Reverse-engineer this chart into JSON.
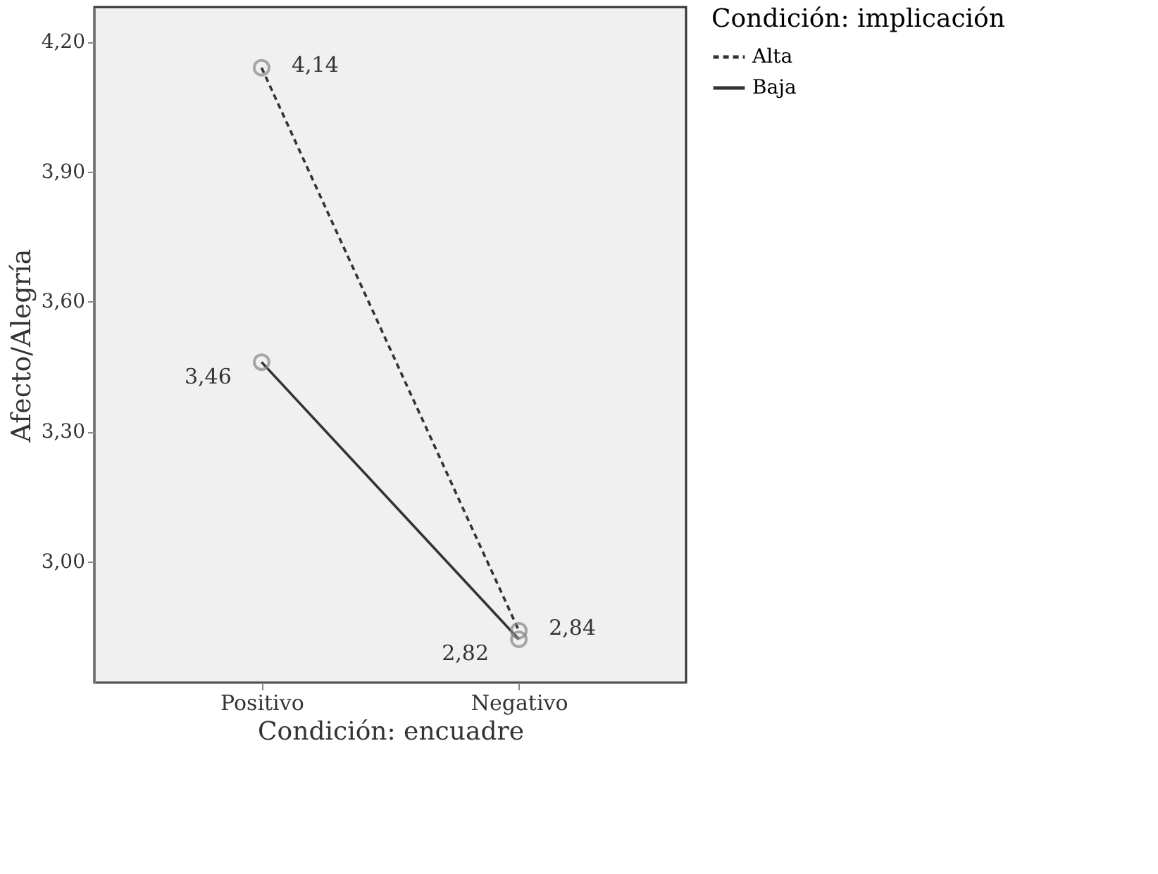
{
  "chart_data": {
    "type": "line",
    "xlabel": "Condición: encuadre",
    "ylabel": "Afecto/Alegría",
    "legend_title": "Condición: implicación",
    "categories": [
      "Positivo",
      "Negativo"
    ],
    "series": [
      {
        "name": "Alta",
        "color": "#333333",
        "values": [
          4.14,
          2.84
        ],
        "value_labels": [
          "4,14",
          "2,84"
        ],
        "line_style": "dashed"
      },
      {
        "name": "Baja",
        "color": "#333333",
        "values": [
          3.46,
          2.82
        ],
        "value_labels": [
          "3,46",
          "2,82"
        ],
        "line_style": "solid"
      }
    ],
    "ylim": [
      2.72,
      4.28
    ],
    "yticks": [
      {
        "value": 3.0,
        "label": "3,00"
      },
      {
        "value": 3.3,
        "label": "3,30"
      },
      {
        "value": 3.6,
        "label": "3,60"
      },
      {
        "value": 3.9,
        "label": "3,90"
      },
      {
        "value": 4.2,
        "label": "4,20"
      }
    ],
    "marker": "circle",
    "grid": false,
    "legend": "right"
  }
}
